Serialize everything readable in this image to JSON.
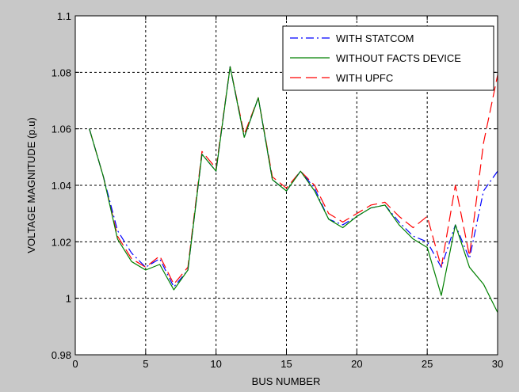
{
  "chart_data": {
    "type": "line",
    "xlabel": "BUS NUMBER",
    "ylabel": "VOLTAGE MAGNITUDE (p.u)",
    "xlim": [
      0,
      30
    ],
    "ylim": [
      0.98,
      1.1
    ],
    "xticks": [
      0,
      5,
      10,
      15,
      20,
      25,
      30
    ],
    "yticks": [
      0.98,
      1,
      1.02,
      1.04,
      1.06,
      1.08,
      1.1
    ],
    "xtick_labels": [
      "0",
      "5",
      "10",
      "15",
      "20",
      "25",
      "30"
    ],
    "ytick_labels": [
      "0.98",
      "1",
      "1.02",
      "1.04",
      "1.06",
      "1.08",
      "1.1"
    ],
    "grid": true,
    "legend_position": "top-right",
    "x": [
      1,
      2,
      3,
      4,
      5,
      6,
      7,
      8,
      9,
      10,
      11,
      12,
      13,
      14,
      15,
      16,
      17,
      18,
      19,
      20,
      21,
      22,
      23,
      24,
      25,
      26,
      27,
      28,
      29,
      30
    ],
    "series": [
      {
        "name": "WITH STATCOM",
        "color": "#0000ff",
        "dash": "dashdot",
        "values": [
          1.06,
          1.043,
          1.024,
          1.016,
          1.011,
          1.014,
          1.004,
          1.01,
          1.051,
          1.045,
          1.082,
          1.057,
          1.071,
          1.042,
          1.038,
          1.045,
          1.039,
          1.028,
          1.026,
          1.029,
          1.032,
          1.033,
          1.027,
          1.022,
          1.02,
          1.011,
          1.026,
          1.014,
          1.038,
          1.045
        ]
      },
      {
        "name": "WITHOUT FACTS DEVICE",
        "color": "#008000",
        "dash": "solid",
        "values": [
          1.06,
          1.043,
          1.021,
          1.013,
          1.01,
          1.012,
          1.003,
          1.01,
          1.051,
          1.045,
          1.082,
          1.057,
          1.071,
          1.042,
          1.038,
          1.045,
          1.038,
          1.028,
          1.025,
          1.029,
          1.032,
          1.033,
          1.026,
          1.021,
          1.018,
          1.001,
          1.026,
          1.011,
          1.005,
          0.995
        ]
      },
      {
        "name": "WITH UPFC",
        "color": "#ff0000",
        "dash": "dashed",
        "values": [
          1.06,
          1.043,
          1.022,
          1.014,
          1.011,
          1.015,
          1.005,
          1.011,
          1.052,
          1.046,
          1.082,
          1.058,
          1.071,
          1.043,
          1.039,
          1.045,
          1.04,
          1.03,
          1.027,
          1.03,
          1.033,
          1.034,
          1.029,
          1.025,
          1.029,
          1.011,
          1.04,
          1.015,
          1.055,
          1.079
        ]
      }
    ]
  }
}
